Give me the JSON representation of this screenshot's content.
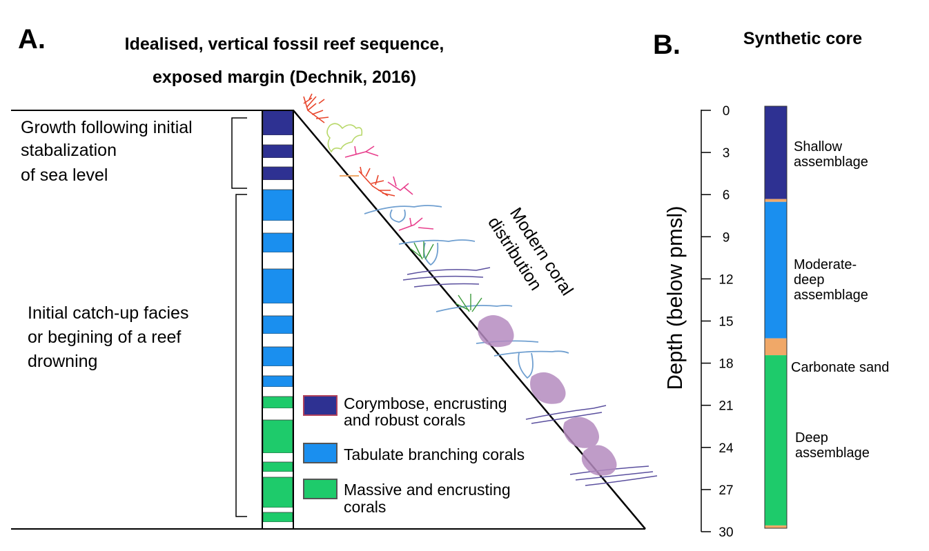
{
  "panel_a": {
    "letter": "A.",
    "title_line1": "Idealised, vertical fossil reef sequence,",
    "title_line2": "exposed margin (Dechnik, 2016)",
    "growth_label": [
      "Growth following initial",
      "stabalization",
      "of sea level"
    ],
    "catchup_label": [
      "Initial catch-up facies",
      "or begining of a reef",
      "drowning"
    ],
    "modern_label": [
      "Modern coral",
      "distribution"
    ],
    "column_blocks": [
      {
        "assemblage": "shallow",
        "color": "#2e3192"
      },
      {
        "assemblage": "white",
        "color": "#ffffff"
      },
      {
        "assemblage": "shallow",
        "color": "#2e3192"
      },
      {
        "assemblage": "white",
        "color": "#ffffff"
      },
      {
        "assemblage": "shallow",
        "color": "#2e3192"
      },
      {
        "assemblage": "white",
        "color": "#ffffff"
      },
      {
        "assemblage": "tabulate",
        "color": "#1a8fef"
      },
      {
        "assemblage": "white",
        "color": "#ffffff"
      },
      {
        "assemblage": "tabulate",
        "color": "#1a8fef"
      },
      {
        "assemblage": "white",
        "color": "#ffffff"
      },
      {
        "assemblage": "tabulate",
        "color": "#1a8fef"
      },
      {
        "assemblage": "white",
        "color": "#ffffff"
      },
      {
        "assemblage": "tabulate",
        "color": "#1a8fef"
      },
      {
        "assemblage": "white",
        "color": "#ffffff"
      },
      {
        "assemblage": "tabulate",
        "color": "#1a8fef"
      },
      {
        "assemblage": "white",
        "color": "#ffffff"
      },
      {
        "assemblage": "tabulate",
        "color": "#1a8fef"
      },
      {
        "assemblage": "white",
        "color": "#ffffff"
      },
      {
        "assemblage": "massive",
        "color": "#1ecb6b"
      },
      {
        "assemblage": "white",
        "color": "#ffffff"
      },
      {
        "assemblage": "massive",
        "color": "#1ecb6b"
      },
      {
        "assemblage": "white",
        "color": "#ffffff"
      },
      {
        "assemblage": "massive",
        "color": "#1ecb6b"
      },
      {
        "assemblage": "white",
        "color": "#ffffff"
      },
      {
        "assemblage": "massive",
        "color": "#1ecb6b"
      },
      {
        "assemblage": "white",
        "color": "#ffffff"
      },
      {
        "assemblage": "massive",
        "color": "#1ecb6b"
      },
      {
        "assemblage": "white",
        "color": "#ffffff"
      }
    ],
    "legend": [
      {
        "lines": [
          "Corymbose, encrusting",
          "and robust corals"
        ],
        "color": "#2e3192",
        "border": "#b0405a"
      },
      {
        "lines": [
          "Tabulate branching corals"
        ],
        "color": "#1a8fef",
        "border": "#555555"
      },
      {
        "lines": [
          "Massive and encrusting",
          "corals"
        ],
        "color": "#1ecb6b",
        "border": "#555555"
      }
    ]
  },
  "panel_b": {
    "letter": "B.",
    "title": "Synthetic core",
    "axis_label": "Depth (below pmsl)",
    "ticks": [
      0,
      3,
      6,
      9,
      12,
      15,
      18,
      21,
      24,
      27,
      30
    ],
    "depth_range": [
      0,
      30
    ],
    "core_units": [
      {
        "name": "shallow",
        "top": 0,
        "bottom": 6.6,
        "color": "#2e3192"
      },
      {
        "name": "boundary",
        "top": 6.6,
        "bottom": 6.8,
        "color": "#f0a868"
      },
      {
        "name": "moderate",
        "top": 6.8,
        "bottom": 16.5,
        "color": "#1a8fef"
      },
      {
        "name": "sand",
        "top": 16.5,
        "bottom": 17.7,
        "color": "#f0a868"
      },
      {
        "name": "deep",
        "top": 17.7,
        "bottom": 29.8,
        "color": "#1ecb6b"
      },
      {
        "name": "base",
        "top": 29.8,
        "bottom": 30,
        "color": "#f0a868"
      }
    ],
    "unit_labels": [
      {
        "lines": [
          "Shallow",
          "assemblage"
        ]
      },
      {
        "lines": [
          "Moderate-",
          "deep",
          "assemblage"
        ]
      },
      {
        "lines": [
          "Carbonate sand"
        ]
      },
      {
        "lines": [
          "Deep",
          "assemblage"
        ]
      }
    ]
  },
  "colors": {
    "shallow": "#2e3192",
    "tabulate": "#1a8fef",
    "massive": "#1ecb6b",
    "sand": "#f0a868",
    "massive_coral_blob": "#b58bbf",
    "branching_red": "#e8442a",
    "branching_pink": "#e83e8c",
    "foliose_lime": "#b8d86a",
    "tabulate_outline": "#6f9fd0",
    "plate_purple": "#5a4f9e"
  }
}
